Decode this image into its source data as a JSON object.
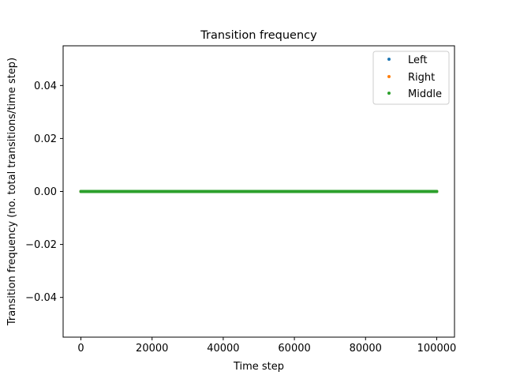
{
  "chart_data": {
    "type": "scatter",
    "title": "Transition frequency",
    "xlabel": "Time step",
    "ylabel": "Transition frequency (no. total transitions/time step)",
    "xlim": [
      -5000,
      105000
    ],
    "ylim": [
      -0.055,
      0.055
    ],
    "xticks": [
      0,
      20000,
      40000,
      60000,
      80000,
      100000
    ],
    "xtick_labels": [
      "0",
      "20000",
      "40000",
      "60000",
      "80000",
      "100000"
    ],
    "yticks": [
      -0.04,
      -0.02,
      0.0,
      0.02,
      0.04
    ],
    "ytick_labels": [
      "−0.04",
      "−0.02",
      "0.00",
      "0.02",
      "0.04"
    ],
    "grid": false,
    "legend_position": "top-right",
    "x_range": [
      0,
      100000
    ],
    "point_count": 100000,
    "series": [
      {
        "name": "Left",
        "color": "#1f77b4",
        "y": 0.0
      },
      {
        "name": "Right",
        "color": "#ff7f0e",
        "y": 0.0
      },
      {
        "name": "Middle",
        "color": "#2ca02c",
        "y": 0.0
      }
    ]
  }
}
